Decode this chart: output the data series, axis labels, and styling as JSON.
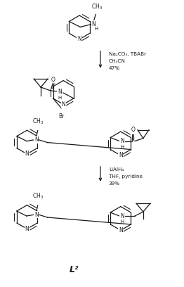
{
  "background_color": "#ffffff",
  "figsize": [
    2.62,
    4.08
  ],
  "dpi": 100,
  "line_color": "#1a1a1a",
  "line_width": 0.9,
  "font_size_atom": 5.5,
  "font_size_reagents": 5.2,
  "font_size_label": 9,
  "reagents1": [
    "Na₂CO₃, TBABr",
    "CH₃CN",
    "47%"
  ],
  "reagents2": [
    "LiAlH₄",
    "THF, pyridine",
    "39%"
  ],
  "label_L2": "L²"
}
